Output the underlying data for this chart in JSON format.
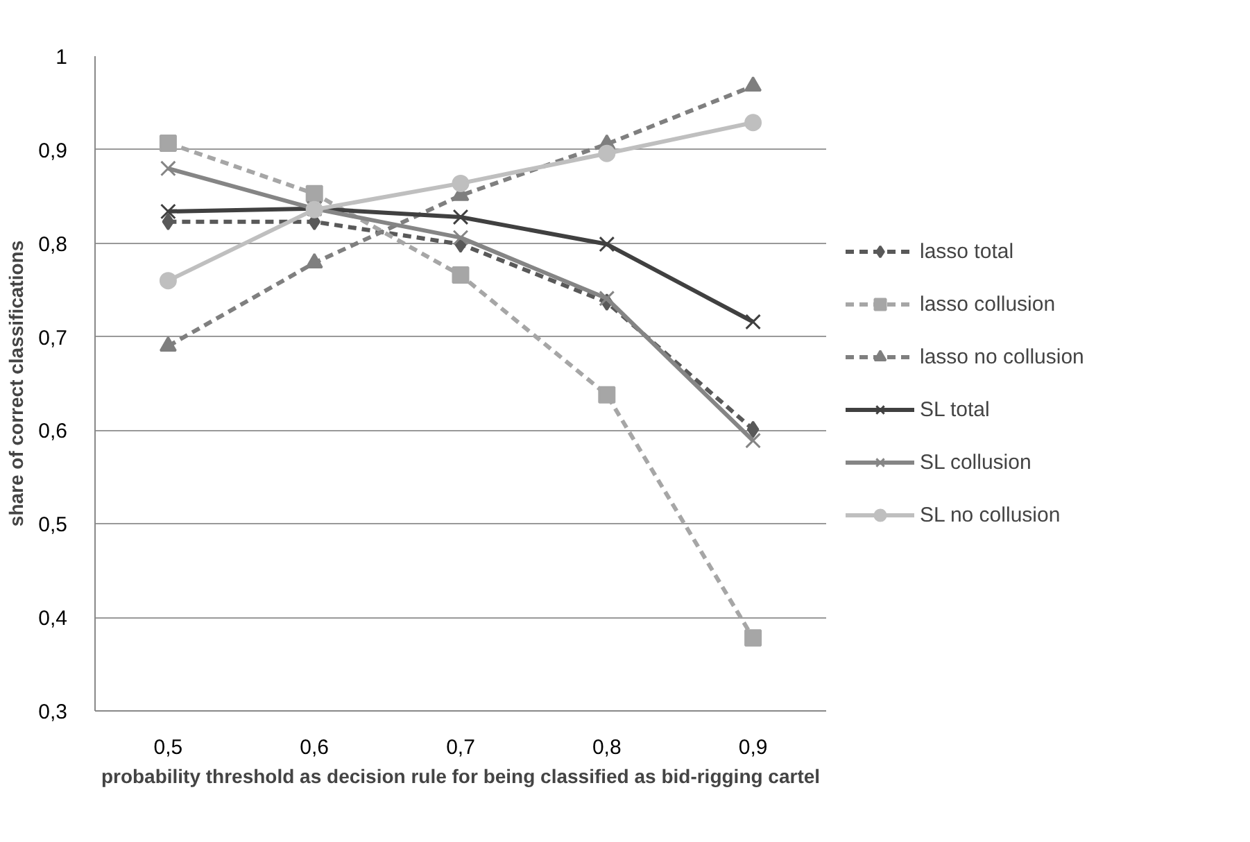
{
  "chart_data": {
    "type": "line",
    "xlabel": "probability threshold as decision rule for being classified as bid-rigging cartel",
    "ylabel": "share of correct classifications",
    "categories": [
      "0,5",
      "0,6",
      "0,7",
      "0,8",
      "0,9"
    ],
    "ylim": [
      0.3,
      1
    ],
    "yticks": [
      {
        "value": 0.3,
        "label": "0,3"
      },
      {
        "value": 0.4,
        "label": "0,4"
      },
      {
        "value": 0.5,
        "label": "0,5"
      },
      {
        "value": 0.6,
        "label": "0,6"
      },
      {
        "value": 0.7,
        "label": "0,7"
      },
      {
        "value": 0.8,
        "label": "0,8"
      },
      {
        "value": 0.9,
        "label": "0,9"
      },
      {
        "value": 1,
        "label": "1"
      }
    ],
    "grid": "y",
    "legend": "right",
    "series": [
      {
        "name": "lasso total",
        "color": "#595959",
        "marker": "diamond",
        "line_style": "dashed",
        "values": [
          0.823,
          0.823,
          0.799,
          0.737,
          0.601
        ]
      },
      {
        "name": "lasso collusion",
        "color": "#a6a6a6",
        "marker": "square",
        "line_style": "dashed",
        "values": [
          0.907,
          0.853,
          0.766,
          0.638,
          0.378
        ]
      },
      {
        "name": "lasso no collusion",
        "color": "#7f7f7f",
        "marker": "triangle",
        "line_style": "dashed",
        "values": [
          0.69,
          0.779,
          0.851,
          0.906,
          0.968
        ]
      },
      {
        "name": "SL total",
        "color": "#404040",
        "marker": "cross",
        "line_style": "solid",
        "values": [
          0.834,
          0.837,
          0.828,
          0.799,
          0.716
        ]
      },
      {
        "name": "SL collusion",
        "color": "#858585",
        "marker": "cross",
        "line_style": "solid",
        "values": [
          0.88,
          0.837,
          0.806,
          0.741,
          0.589
        ]
      },
      {
        "name": "SL no collusion",
        "color": "#bfbfbf",
        "marker": "circle",
        "line_style": "solid",
        "values": [
          0.76,
          0.836,
          0.864,
          0.896,
          0.929
        ]
      }
    ]
  }
}
